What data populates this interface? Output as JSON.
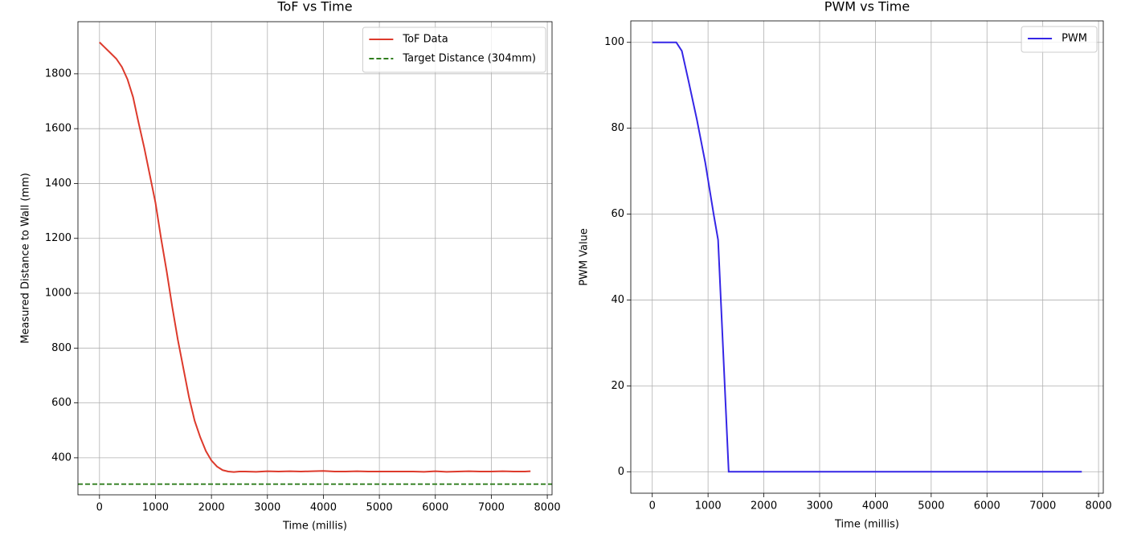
{
  "chart_data": [
    {
      "type": "line",
      "title": "ToF vs Time",
      "xlabel": "Time (millis)",
      "ylabel": "Measured Distance to Wall (mm)",
      "xlim": [
        -385,
        8085
      ],
      "ylim": [
        265,
        1990
      ],
      "xticks": [
        0,
        1000,
        2000,
        3000,
        4000,
        5000,
        6000,
        7000,
        8000
      ],
      "yticks": [
        400,
        600,
        800,
        1000,
        1200,
        1400,
        1600,
        1800
      ],
      "grid": true,
      "legend": "upper right",
      "series": [
        {
          "name": "ToF Data",
          "color": "#dd3a2c",
          "x": [
            0,
            100,
            200,
            300,
            400,
            500,
            600,
            700,
            800,
            900,
            1000,
            1100,
            1200,
            1300,
            1400,
            1500,
            1600,
            1700,
            1800,
            1900,
            2000,
            2100,
            2200,
            2300,
            2400,
            2500,
            2600,
            2800,
            3000,
            3200,
            3400,
            3600,
            3800,
            4000,
            4200,
            4400,
            4600,
            4800,
            5000,
            5200,
            5400,
            5600,
            5800,
            6000,
            6200,
            6400,
            6600,
            6800,
            7000,
            7200,
            7400,
            7600,
            7700
          ],
          "values": [
            1915,
            1895,
            1875,
            1855,
            1825,
            1780,
            1715,
            1620,
            1530,
            1430,
            1330,
            1200,
            1080,
            950,
            830,
            725,
            620,
            535,
            475,
            425,
            390,
            368,
            355,
            350,
            348,
            350,
            350,
            349,
            351,
            350,
            351,
            350,
            351,
            352,
            350,
            350,
            351,
            350,
            350,
            350,
            350,
            350,
            349,
            351,
            349,
            350,
            351,
            350,
            350,
            351,
            350,
            350,
            351
          ]
        }
      ],
      "hlines": [
        {
          "name": "Target Distance (304mm)",
          "value": 304,
          "color": "#2f7d1d",
          "style": "dashed"
        }
      ]
    },
    {
      "type": "line",
      "title": "PWM vs Time",
      "xlabel": "Time (millis)",
      "ylabel": "PWM Value",
      "xlim": [
        -385,
        8085
      ],
      "ylim": [
        -5,
        105
      ],
      "xticks": [
        0,
        1000,
        2000,
        3000,
        4000,
        5000,
        6000,
        7000,
        8000
      ],
      "yticks": [
        0,
        20,
        40,
        60,
        80,
        100
      ],
      "grid": true,
      "legend": "upper right",
      "series": [
        {
          "name": "PWM",
          "color": "#3526e6",
          "x": [
            0,
            430,
            530,
            650,
            800,
            950,
            1100,
            1180,
            1370,
            7700
          ],
          "values": [
            100,
            100,
            98,
            91,
            82,
            72,
            60,
            54,
            0,
            0
          ]
        }
      ]
    }
  ]
}
